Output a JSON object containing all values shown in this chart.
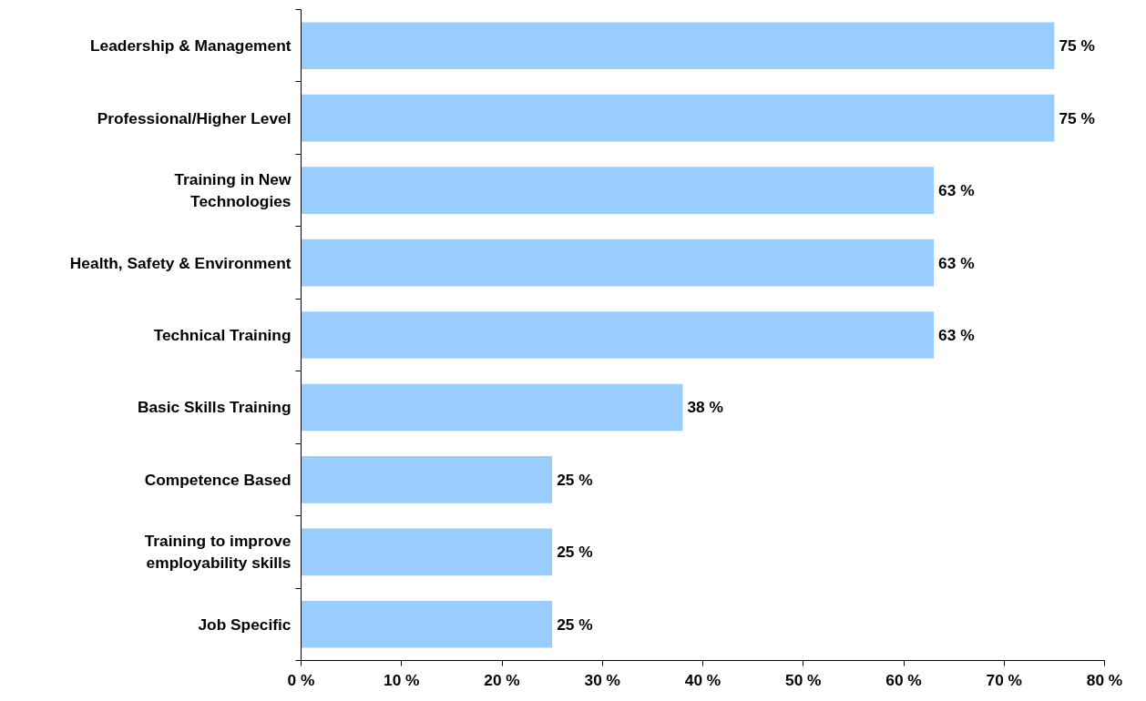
{
  "chart_data": {
    "type": "bar",
    "orientation": "horizontal",
    "categories": [
      "Leadership & Management",
      "Professional/Higher Level",
      "Training in New\nTechnologies",
      "Health, Safety & Environment",
      "Technical Training",
      "Basic Skills Training",
      "Competence Based",
      "Training to improve\nemployability skills",
      "Job Specific"
    ],
    "values": [
      75,
      75,
      63,
      63,
      63,
      38,
      25,
      25,
      25
    ],
    "value_labels": [
      "75 %",
      "75 %",
      "63 %",
      "63 %",
      "63 %",
      "38 %",
      "25 %",
      "25 %",
      "25 %"
    ],
    "color": "#99ccff",
    "xlim": [
      0,
      80
    ],
    "xticks": [
      {
        "value": 0,
        "label": "0 %"
      },
      {
        "value": 10,
        "label": "10 %"
      },
      {
        "value": 20,
        "label": "20 %"
      },
      {
        "value": 30,
        "label": "30 %"
      },
      {
        "value": 40,
        "label": "40 %"
      },
      {
        "value": 50,
        "label": "50 %"
      },
      {
        "value": 60,
        "label": "60 %"
      },
      {
        "value": 70,
        "label": "70 %"
      },
      {
        "value": 80,
        "label": "80 %"
      }
    ],
    "grid": false
  }
}
